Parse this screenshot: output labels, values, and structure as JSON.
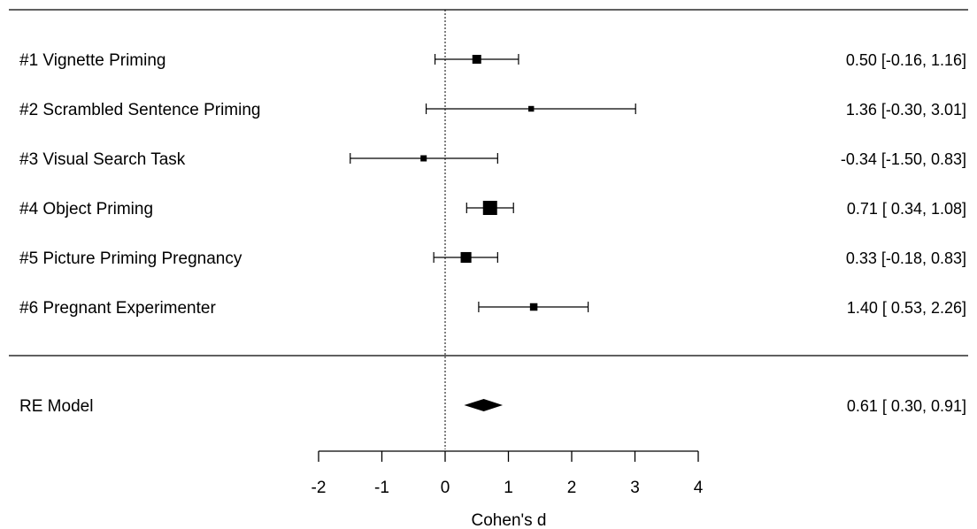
{
  "chart_data": {
    "type": "forest",
    "xlabel": "Cohen's d",
    "xlim": [
      -2,
      4
    ],
    "xticks": [
      -2,
      -1,
      0,
      1,
      2,
      3,
      4
    ],
    "reference_line": 0,
    "studies": [
      {
        "label": "#1 Vignette Priming",
        "estimate": 0.5,
        "lower": -0.16,
        "upper": 1.16,
        "ci_text": "0.50 [-0.16, 1.16]",
        "weight": 2
      },
      {
        "label": "#2 Scrambled Sentence Priming",
        "estimate": 1.36,
        "lower": -0.3,
        "upper": 3.01,
        "ci_text": "1.36 [-0.30, 3.01]",
        "weight": 0.8
      },
      {
        "label": "#3 Visual Search Task",
        "estimate": -0.34,
        "lower": -1.5,
        "upper": 0.83,
        "ci_text": "-0.34 [-1.50, 0.83]",
        "weight": 1
      },
      {
        "label": "#4 Object Priming",
        "estimate": 0.71,
        "lower": 0.34,
        "upper": 1.08,
        "ci_text": "0.71 [ 0.34, 1.08]",
        "weight": 4
      },
      {
        "label": "#5 Picture Priming Pregnancy",
        "estimate": 0.33,
        "lower": -0.18,
        "upper": 0.83,
        "ci_text": "0.33 [-0.18, 0.83]",
        "weight": 2.7
      },
      {
        "label": "#6 Pregnant Experimenter",
        "estimate": 1.4,
        "lower": 0.53,
        "upper": 2.26,
        "ci_text": "1.40 [ 0.53, 2.26]",
        "weight": 1.5
      }
    ],
    "summary": {
      "label": "RE Model",
      "estimate": 0.61,
      "lower": 0.3,
      "upper": 0.91,
      "ci_text": "0.61 [ 0.30, 0.91]"
    }
  }
}
